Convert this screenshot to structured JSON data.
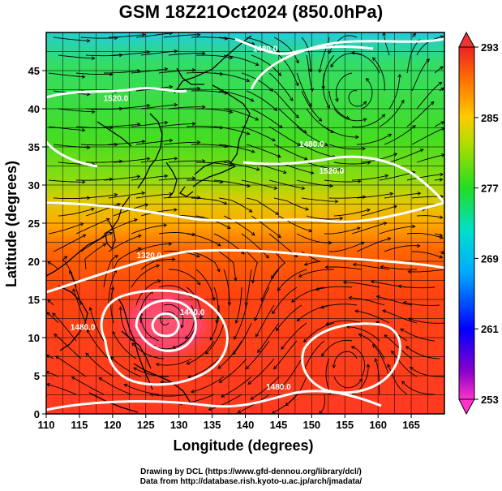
{
  "title": "GSM 18Z21Oct2024 (850.0hPa)",
  "axes": {
    "xlabel": "Longitude (degrees)",
    "ylabel": "Latitude  (degrees)",
    "xticks": [
      "110",
      "115",
      "120",
      "125",
      "130",
      "135",
      "140",
      "145",
      "150",
      "155",
      "160",
      "165"
    ],
    "yticks": [
      "0",
      "5",
      "10",
      "15",
      "20",
      "25",
      "30",
      "35",
      "40",
      "45"
    ],
    "xlim": [
      110,
      170
    ],
    "ylim": [
      0,
      50
    ]
  },
  "colorbar": {
    "labels": [
      "293",
      "285",
      "277",
      "269",
      "261",
      "253"
    ],
    "range": [
      253,
      293
    ],
    "colors": [
      "#ff33cc",
      "#6600cc",
      "#0000ff",
      "#00aaff",
      "#00e0d0",
      "#22dd22",
      "#aadd00",
      "#ffcc00",
      "#ff8800",
      "#ff3300",
      "#ee2222"
    ]
  },
  "contour_labels": [
    {
      "text": "1320.0",
      "lon": 125.5,
      "lat": 20.4
    },
    {
      "text": "1440.0",
      "lon": 132.0,
      "lat": 13.0
    },
    {
      "text": "1480.0",
      "lon": 115.5,
      "lat": 11.0
    },
    {
      "text": "1480.0",
      "lon": 145.0,
      "lat": 3.2
    },
    {
      "text": "1520.0",
      "lon": 120.5,
      "lat": 41.0
    },
    {
      "text": "1480.0",
      "lon": 143.0,
      "lat": 47.5
    },
    {
      "text": "1520.0",
      "lon": 153.0,
      "lat": 31.5
    },
    {
      "text": "1480.0",
      "lon": 150.0,
      "lat": 35.0
    }
  ],
  "credits": [
    "Drawing by DCL (https://www.gfd-dennou.org/library/dcl/)",
    "Data from http://database.rish.kyoto-u.ac.jp/arch/jmadata/"
  ]
}
